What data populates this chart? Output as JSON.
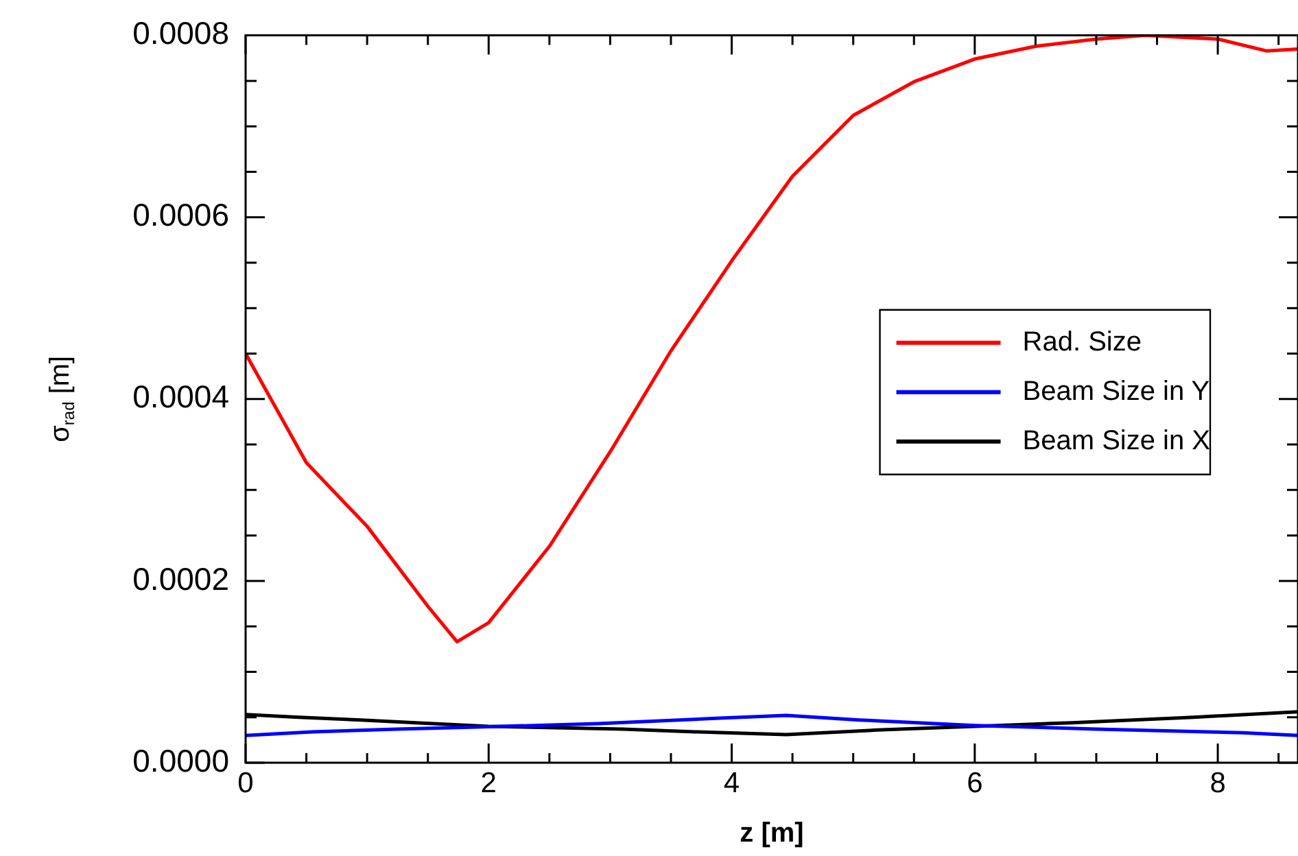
{
  "chart_data": {
    "type": "line",
    "xlabel": "z [m]",
    "ylabel": "σ$_{rad}$ [m]",
    "xlim": [
      0,
      8.66
    ],
    "ylim": [
      0,
      0.0008
    ],
    "xticks": [
      0,
      {
        "value": 0.5,
        "label": null
      },
      {
        "value": 1,
        "label": null
      },
      {
        "value": 1.5,
        "label": null
      },
      2,
      {
        "value": 2.5,
        "label": null
      },
      {
        "value": 3,
        "label": null
      },
      {
        "value": 3.5,
        "label": null
      },
      4,
      {
        "value": 4.5,
        "label": null
      },
      {
        "value": 5,
        "label": null
      },
      {
        "value": 5.5,
        "label": null
      },
      6,
      {
        "value": 6.5,
        "label": null
      },
      {
        "value": 7,
        "label": null
      },
      {
        "value": 7.5,
        "label": null
      },
      8,
      {
        "value": 8.5,
        "label": null
      }
    ],
    "yticks": [
      {
        "value": 0,
        "label": "0.0000"
      },
      {
        "value": 5e-05,
        "label": null
      },
      {
        "value": 0.0001,
        "label": null
      },
      {
        "value": 0.00015,
        "label": null
      },
      0.0002,
      {
        "value": 0.00025,
        "label": null
      },
      {
        "value": 0.0003,
        "label": null
      },
      {
        "value": 0.00035,
        "label": null
      },
      0.0004,
      {
        "value": 0.00045,
        "label": null
      },
      {
        "value": 0.0005,
        "label": null
      },
      {
        "value": 0.00055,
        "label": null
      },
      0.0006,
      {
        "value": 0.00065,
        "label": null
      },
      {
        "value": 0.0007,
        "label": null
      },
      {
        "value": 0.00075,
        "label": null
      },
      0.0008
    ],
    "grid": false,
    "legend": "right",
    "marker": "none",
    "line_style": "solid",
    "series": [
      {
        "name": "Rad. Size",
        "color": "#ff0000",
        "x": [
          0,
          0.25,
          0.5,
          1,
          1.5,
          1.74,
          2,
          2.5,
          3,
          3.5,
          4,
          4.5,
          5,
          5.5,
          6,
          6.5,
          7,
          7.4,
          8,
          8.4,
          8.66
        ],
        "values": [
          0.00045,
          0.00039,
          0.00033,
          0.00026,
          0.000172,
          0.000133,
          0.000154,
          0.000238,
          0.000342,
          0.000453,
          0.000552,
          0.000645,
          0.000712,
          0.000749,
          0.000774,
          0.000788,
          0.000796,
          0.0008,
          0.000796,
          0.000783,
          0.000785
        ]
      },
      {
        "name": "Beam Size in Y",
        "color": "#0000ff",
        "x": [
          0,
          0.55,
          1.25,
          1.85,
          2.9,
          3.9,
          4.45,
          5.05,
          6,
          7,
          8.2,
          8.66
        ],
        "values": [
          3e-05,
          3.4e-05,
          3.7e-05,
          3.9e-05,
          4.3e-05,
          4.9e-05,
          5.2e-05,
          4.7e-05,
          4.1e-05,
          3.7e-05,
          3.3e-05,
          3e-05
        ]
      },
      {
        "name": "Beam Size in X",
        "color": "#000000",
        "x": [
          0,
          0.44,
          0.95,
          1.4,
          2,
          3.1,
          3.7,
          4.45,
          5.2,
          6,
          6.8,
          7.8,
          8.66
        ],
        "values": [
          5.3e-05,
          5e-05,
          4.7e-05,
          4.4e-05,
          4e-05,
          3.7e-05,
          3.4e-05,
          3.1e-05,
          3.6e-05,
          4e-05,
          4.4e-05,
          5e-05,
          5.6e-05
        ]
      }
    ]
  }
}
